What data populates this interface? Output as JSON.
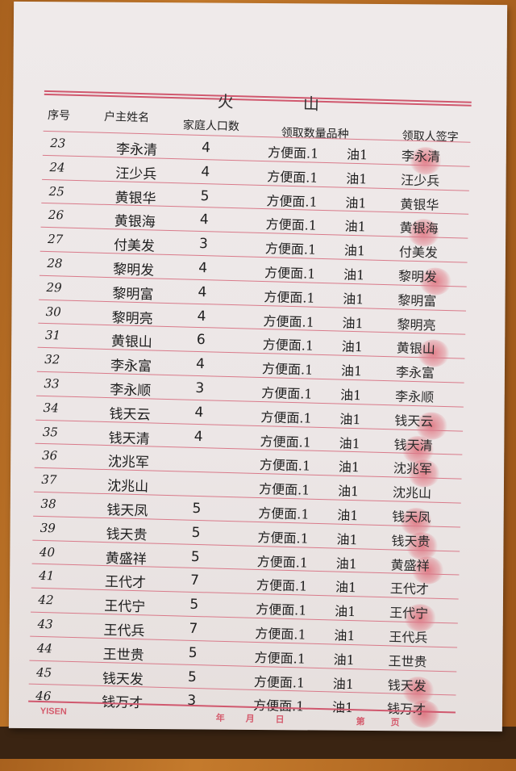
{
  "title": "火 山",
  "headers": {
    "no": "序号",
    "name": "户主姓名",
    "count": "家庭人口数",
    "items": "领取数量品种",
    "signature": "领取人签字"
  },
  "rows": [
    {
      "no": "23",
      "name": "李永清",
      "count": "4",
      "item": "方便面.1",
      "oil": "油1",
      "sig": "李永清"
    },
    {
      "no": "24",
      "name": "汪少兵",
      "count": "4",
      "item": "方便面.1",
      "oil": "油1",
      "sig": "汪少兵"
    },
    {
      "no": "25",
      "name": "黄银华",
      "count": "5",
      "item": "方便面.1",
      "oil": "油1",
      "sig": "黄银华"
    },
    {
      "no": "26",
      "name": "黄银海",
      "count": "4",
      "item": "方便面.1",
      "oil": "油1",
      "sig": "黄银海"
    },
    {
      "no": "27",
      "name": "付美发",
      "count": "3",
      "item": "方便面.1",
      "oil": "油1",
      "sig": "付美发"
    },
    {
      "no": "28",
      "name": "黎明发",
      "count": "4",
      "item": "方便面.1",
      "oil": "油1",
      "sig": "黎明发"
    },
    {
      "no": "29",
      "name": "黎明富",
      "count": "4",
      "item": "方便面.1",
      "oil": "油1",
      "sig": "黎明富"
    },
    {
      "no": "30",
      "name": "黎明亮",
      "count": "4",
      "item": "方便面.1",
      "oil": "油1",
      "sig": "黎明亮"
    },
    {
      "no": "31",
      "name": "黄银山",
      "count": "6",
      "item": "方便面.1",
      "oil": "油1",
      "sig": "黄银山"
    },
    {
      "no": "32",
      "name": "李永富",
      "count": "4",
      "item": "方便面.1",
      "oil": "油1",
      "sig": "李永富"
    },
    {
      "no": "33",
      "name": "李永顺",
      "count": "3",
      "item": "方便面.1",
      "oil": "油1",
      "sig": "李永顺"
    },
    {
      "no": "34",
      "name": "钱天云",
      "count": "4",
      "item": "方便面.1",
      "oil": "油1",
      "sig": "钱天云"
    },
    {
      "no": "35",
      "name": "钱天清",
      "count": "4",
      "item": "方便面.1",
      "oil": "油1",
      "sig": "钱天清"
    },
    {
      "no": "36",
      "name": "沈兆军",
      "count": "",
      "item": "方便面.1",
      "oil": "油1",
      "sig": "沈兆军"
    },
    {
      "no": "37",
      "name": "沈兆山",
      "count": "",
      "item": "方便面.1",
      "oil": "油1",
      "sig": "沈兆山"
    },
    {
      "no": "38",
      "name": "钱天凤",
      "count": "5",
      "item": "方便面.1",
      "oil": "油1",
      "sig": "钱天凤"
    },
    {
      "no": "39",
      "name": "钱天贵",
      "count": "5",
      "item": "方便面.1",
      "oil": "油1",
      "sig": "钱天贵"
    },
    {
      "no": "40",
      "name": "黄盛祥",
      "count": "5",
      "item": "方便面.1",
      "oil": "油1",
      "sig": "黄盛祥"
    },
    {
      "no": "41",
      "name": "王代才",
      "count": "7",
      "item": "方便面.1",
      "oil": "油1",
      "sig": "王代才"
    },
    {
      "no": "42",
      "name": "王代宁",
      "count": "5",
      "item": "方便面.1",
      "oil": "油1",
      "sig": "王代宁"
    },
    {
      "no": "43",
      "name": "王代兵",
      "count": "7",
      "item": "方便面.1",
      "oil": "油1",
      "sig": "王代兵"
    },
    {
      "no": "44",
      "name": "王世贵",
      "count": "5",
      "item": "方便面.1",
      "oil": "油1",
      "sig": "王世贵"
    },
    {
      "no": "45",
      "name": "钱天发",
      "count": "5",
      "item": "方便面.1",
      "oil": "油1",
      "sig": "钱天发"
    },
    {
      "no": "46",
      "name": "钱万才",
      "count": "3",
      "item": "方便面.1",
      "oil": "油1",
      "sig": "钱万才"
    }
  ],
  "footer": {
    "brand": "YISEN",
    "year": "年",
    "month": "月",
    "day": "日",
    "page_prefix": "第",
    "page_suffix": "页"
  },
  "colors": {
    "ruling": "#d97a8a",
    "fingerprint": "#d7283c",
    "paper": "#ece6e6",
    "desk": "#b56c24"
  }
}
